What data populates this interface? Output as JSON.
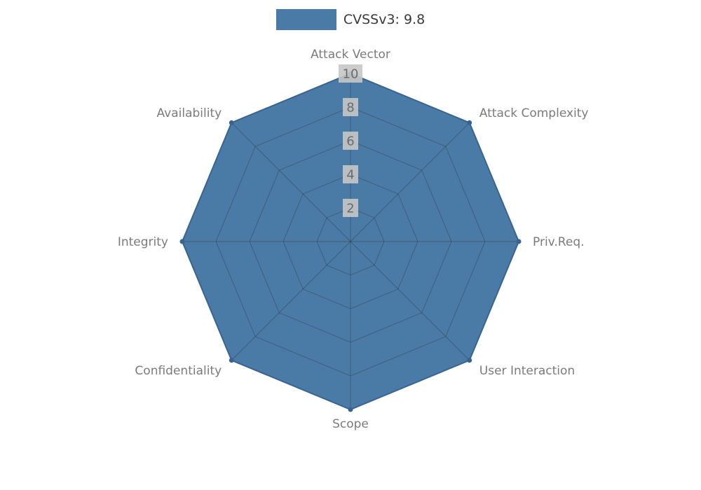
{
  "legend": {
    "label": "CVSSv3: 9.8",
    "swatch_color": "#4a7ba6"
  },
  "chart_data": {
    "type": "radar",
    "title": "CVSSv3: 9.8",
    "categories": [
      "Attack Vector",
      "Attack Complexity",
      "Priv.Req.",
      "User Interaction",
      "Scope",
      "Confidentiality",
      "Integrity",
      "Availability"
    ],
    "series": [
      {
        "name": "CVSSv3: 9.8",
        "values": [
          10,
          10,
          10,
          10,
          10,
          10,
          10,
          10
        ]
      }
    ],
    "ticks": [
      2,
      4,
      6,
      8,
      10
    ],
    "rlim": [
      0,
      10
    ],
    "grid": true,
    "legend_position": "top",
    "colors": {
      "fill": "#4a7ba6",
      "stroke": "#38648f",
      "grid": "#333333",
      "axis_label": "#7b7b7b",
      "tick_label": "#6b6b6b",
      "tick_bg": "#c6c6c6",
      "legend_text": "#3a3a3a"
    }
  }
}
